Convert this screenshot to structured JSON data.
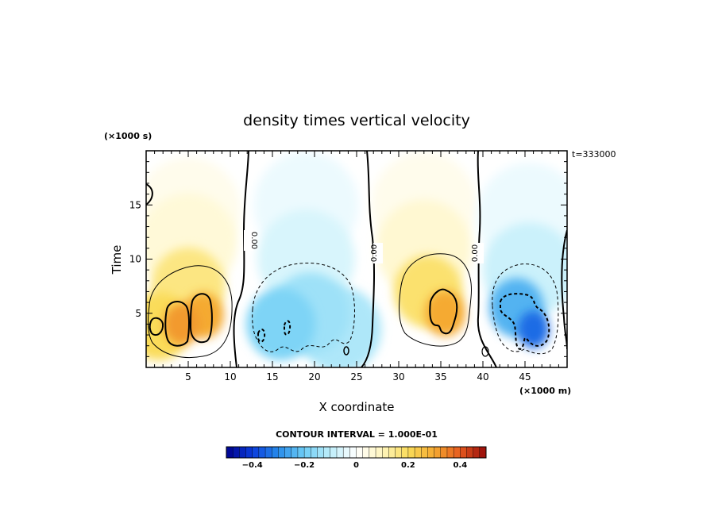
{
  "chart_data": {
    "type": "heatmap",
    "title": "density times vertical velocity",
    "xlabel": "X coordinate",
    "ylabel": "Time",
    "x_unit_label": "(×1000 m)",
    "y_unit_label": "(×1000 s)",
    "time_stamp": "t=333000",
    "xlim": [
      0,
      50
    ],
    "ylim": [
      0,
      20
    ],
    "x_ticks": [
      5,
      10,
      15,
      20,
      25,
      30,
      35,
      40,
      45
    ],
    "x_tick_labels": [
      "5",
      "10",
      "15",
      "20",
      "25",
      "30",
      "35",
      "40",
      "45"
    ],
    "y_ticks": [
      5,
      10,
      15
    ],
    "y_tick_labels": [
      "5",
      "10",
      "15"
    ],
    "contour_interval_text": "CONTOUR INTERVAL = 1.000E-01",
    "zero_contour_label": "0.00",
    "colorbar": {
      "range": [
        -0.5,
        0.5
      ],
      "tick_values": [
        -0.4,
        -0.2,
        0,
        0.2,
        0.4
      ],
      "tick_labels": [
        "−0.4",
        "−0.2",
        "0",
        "0.2",
        "0.4"
      ],
      "colormap": "blue-cyan-white-yellow-red"
    },
    "cells": [
      {
        "x": 4.2,
        "y": 4.0,
        "value": 0.32
      },
      {
        "x": 6.8,
        "y": 4.8,
        "value": 0.3
      },
      {
        "x": 1.5,
        "y": 3.8,
        "value": 0.2
      },
      {
        "x": 5.0,
        "y": 7.5,
        "value": 0.16
      },
      {
        "x": 5.0,
        "y": 11.5,
        "value": 0.06
      },
      {
        "x": 5.0,
        "y": 14.5,
        "value": 0.03
      },
      {
        "x": 16.0,
        "y": 4.0,
        "value": -0.18
      },
      {
        "x": 19.5,
        "y": 5.0,
        "value": -0.14
      },
      {
        "x": 23.0,
        "y": 3.5,
        "value": -0.12
      },
      {
        "x": 19.0,
        "y": 10.0,
        "value": -0.06
      },
      {
        "x": 19.0,
        "y": 15.0,
        "value": -0.03
      },
      {
        "x": 35.5,
        "y": 5.0,
        "value": 0.3
      },
      {
        "x": 33.5,
        "y": 7.0,
        "value": 0.18
      },
      {
        "x": 33.0,
        "y": 11.0,
        "value": 0.07
      },
      {
        "x": 33.0,
        "y": 15.0,
        "value": 0.03
      },
      {
        "x": 46.0,
        "y": 3.5,
        "value": -0.34
      },
      {
        "x": 44.0,
        "y": 5.5,
        "value": -0.24
      },
      {
        "x": 45.5,
        "y": 9.0,
        "value": -0.08
      },
      {
        "x": 45.5,
        "y": 14.0,
        "value": -0.03
      }
    ]
  }
}
